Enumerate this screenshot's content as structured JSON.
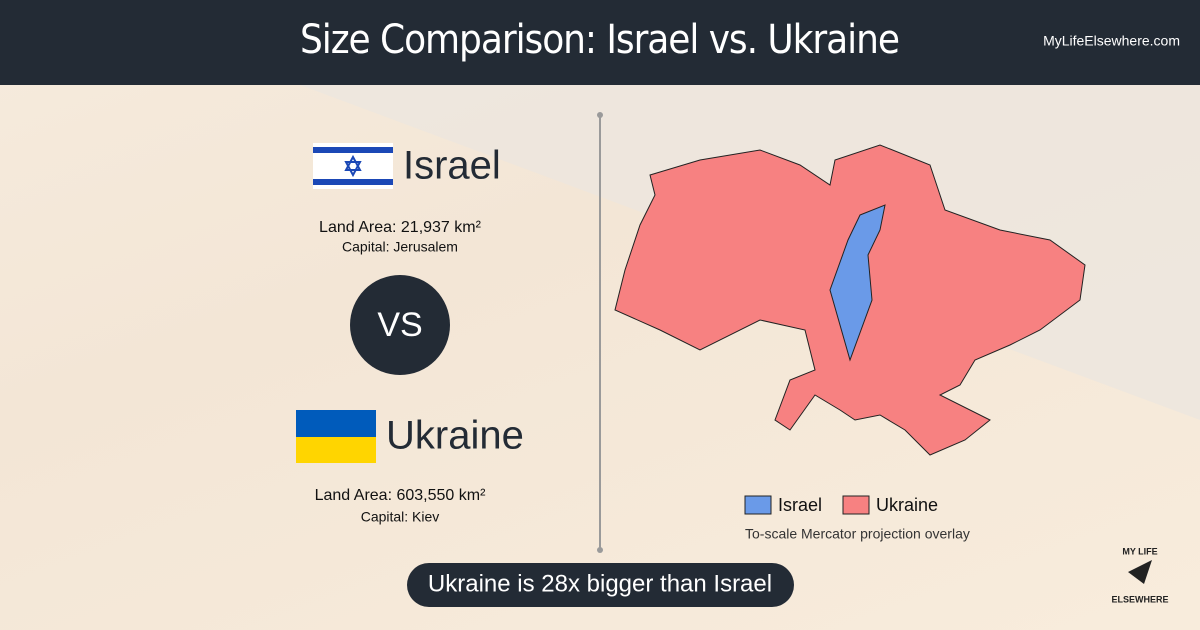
{
  "header": {
    "title": "Size Comparison: Israel vs. Ukraine",
    "site": "MyLifeElsewhere.com"
  },
  "countries": [
    {
      "name": "Israel",
      "land_area": "Land Area: 21,937 km²",
      "capital": "Capital: Jerusalem"
    },
    {
      "name": "Ukraine",
      "land_area": "Land Area: 603,550 km²",
      "capital": "Capital: Kiev"
    }
  ],
  "vs": "VS",
  "legend": [
    "Israel",
    "Ukraine"
  ],
  "map_note": "To-scale Mercator projection overlay",
  "summary": "Ukraine is 28x bigger than Israel",
  "logo": [
    "MY LIFE",
    "ELSEWHERE"
  ]
}
